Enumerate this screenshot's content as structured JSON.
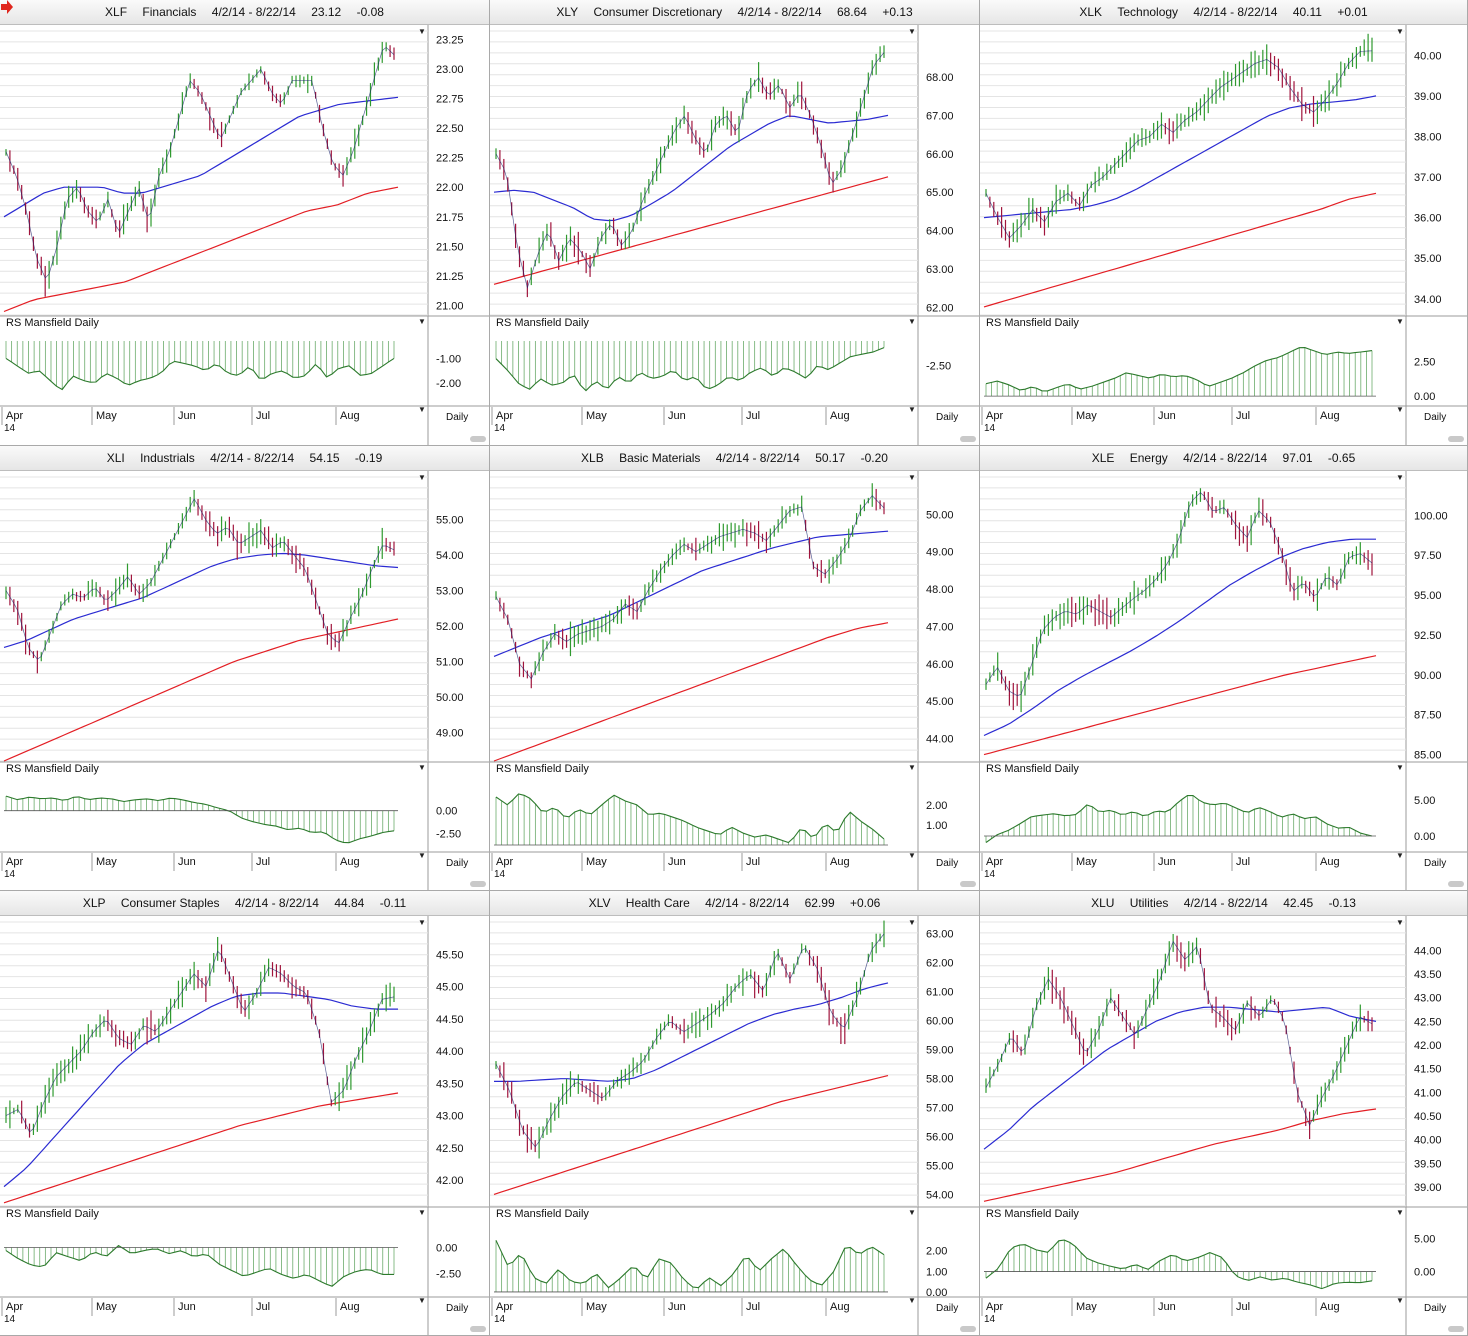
{
  "layout": {
    "cols": 3,
    "rows": 3
  },
  "colors": {
    "price_up": "#2f9a2f",
    "price_down": "#a0143c",
    "ma_short": "#2b2bd2",
    "ma_long": "#e31e24",
    "rs_fill": "#3a8f3a",
    "grid": "#e4e4e4",
    "alert": "#e0261d"
  },
  "common": {
    "rs_label": "RS Mansfield Daily",
    "daily_label": "Daily",
    "months": [
      "Apr",
      "May",
      "Jun",
      "Jul",
      "Aug"
    ],
    "year": "14",
    "alert_icon": "red-arrow-icon"
  },
  "chart_data": [
    {
      "type": "line",
      "symbol": "XLF",
      "name": "Financials",
      "range": "4/2/14 - 8/22/14",
      "last": "23.12",
      "change": "-0.08",
      "price_ticks": [
        "21.00",
        "21.25",
        "21.50",
        "21.75",
        "22.00",
        "22.25",
        "22.50",
        "22.75",
        "23.00",
        "23.25"
      ],
      "ylim": [
        20.92,
        23.32
      ],
      "price": [
        22.3,
        22.1,
        21.8,
        21.4,
        21.2,
        21.5,
        21.9,
        22.0,
        21.8,
        21.7,
        21.9,
        21.6,
        21.8,
        22.0,
        21.7,
        22.1,
        22.3,
        22.6,
        22.9,
        22.8,
        22.6,
        22.4,
        22.6,
        22.8,
        22.9,
        23.0,
        22.8,
        22.7,
        22.9,
        22.9,
        22.9,
        22.5,
        22.2,
        22.1,
        22.3,
        22.6,
        22.9,
        23.2,
        23.12
      ],
      "ma_short": [
        21.75,
        21.85,
        21.95,
        22.0,
        22.0,
        22.0,
        21.95,
        21.95,
        22.0,
        22.05,
        22.1,
        22.2,
        22.3,
        22.4,
        22.5,
        22.6,
        22.65,
        22.7,
        22.72,
        22.74,
        22.76
      ],
      "ma_long": [
        20.95,
        21.05,
        21.1,
        21.15,
        21.2,
        21.3,
        21.4,
        21.5,
        21.6,
        21.7,
        21.8,
        21.85,
        21.95,
        22.0
      ],
      "rs_ticks": [
        "-1.00",
        "-2.00"
      ],
      "rs_lim": [
        -2.8,
        -0.3
      ],
      "rs": [
        -1.0,
        -1.3,
        -1.6,
        -1.5,
        -1.9,
        -2.3,
        -1.7,
        -1.9,
        -2.0,
        -1.6,
        -1.8,
        -2.1,
        -1.9,
        -1.8,
        -1.6,
        -1.1,
        -1.2,
        -1.3,
        -1.5,
        -1.2,
        -1.6,
        -1.7,
        -1.3,
        -1.9,
        -1.6,
        -1.5,
        -1.8,
        -1.7,
        -1.2,
        -1.8,
        -1.4,
        -1.3,
        -1.7,
        -1.6,
        -1.3,
        -1.0
      ]
    },
    {
      "type": "line",
      "symbol": "XLY",
      "name": "Consumer Discretionary",
      "range": "4/2/14 - 8/22/14",
      "last": "68.64",
      "change": "+0.13",
      "price_ticks": [
        "62.00",
        "63.00",
        "64.00",
        "65.00",
        "66.00",
        "67.00",
        "68.00"
      ],
      "ylim": [
        61.8,
        69.2
      ],
      "price": [
        66.0,
        65.5,
        63.6,
        62.5,
        63.4,
        64.0,
        63.2,
        63.8,
        63.5,
        63.0,
        63.8,
        64.2,
        63.6,
        64.0,
        64.8,
        65.4,
        66.0,
        66.6,
        67.0,
        66.4,
        66.0,
        66.8,
        67.0,
        66.5,
        67.6,
        68.0,
        67.5,
        67.8,
        67.2,
        67.6,
        67.0,
        66.2,
        65.2,
        65.6,
        66.5,
        67.4,
        68.3,
        68.64
      ],
      "ma_short": [
        65.0,
        65.05,
        65.0,
        64.8,
        64.6,
        64.3,
        64.25,
        64.4,
        64.7,
        65.0,
        65.4,
        65.8,
        66.2,
        66.5,
        66.8,
        67.0,
        66.9,
        66.8,
        66.85,
        66.9,
        67.0
      ],
      "ma_long": [
        62.6,
        62.8,
        63.0,
        63.2,
        63.4,
        63.6,
        63.8,
        64.0,
        64.2,
        64.4,
        64.6,
        64.8,
        65.0,
        65.2,
        65.4
      ],
      "rs_ticks": [
        "-2.50"
      ],
      "rs_lim": [
        -4.2,
        -1.4
      ],
      "rs": [
        -2.2,
        -2.7,
        -3.3,
        -3.6,
        -3.1,
        -3.4,
        -3.3,
        -2.9,
        -3.7,
        -3.2,
        -3.6,
        -3.0,
        -3.3,
        -2.8,
        -3.1,
        -3.0,
        -2.7,
        -3.2,
        -3.0,
        -3.6,
        -3.4,
        -3.0,
        -3.2,
        -2.8,
        -2.6,
        -3.0,
        -2.6,
        -2.8,
        -3.1,
        -2.5,
        -2.7,
        -2.4,
        -2.1,
        -2.0,
        -1.9,
        -1.7
      ]
    },
    {
      "type": "line",
      "symbol": "XLK",
      "name": "Technology",
      "range": "4/2/14 - 8/22/14",
      "last": "40.11",
      "change": "+0.01",
      "price_ticks": [
        "34.00",
        "35.00",
        "36.00",
        "37.00",
        "38.00",
        "39.00",
        "40.00"
      ],
      "ylim": [
        33.6,
        40.6
      ],
      "price": [
        36.6,
        36.0,
        35.5,
        35.8,
        36.2,
        35.9,
        36.4,
        36.6,
        36.3,
        36.8,
        37.0,
        37.3,
        37.6,
        37.9,
        38.0,
        38.3,
        38.1,
        38.4,
        38.6,
        38.9,
        39.2,
        39.4,
        39.6,
        39.8,
        39.9,
        39.7,
        39.2,
        38.8,
        38.6,
        38.9,
        39.3,
        39.8,
        40.1,
        40.11
      ],
      "ma_short": [
        36.0,
        36.05,
        36.1,
        36.15,
        36.2,
        36.3,
        36.45,
        36.7,
        37.0,
        37.3,
        37.6,
        37.9,
        38.2,
        38.5,
        38.7,
        38.8,
        38.85,
        38.9,
        39.0
      ],
      "ma_long": [
        33.8,
        34.0,
        34.2,
        34.4,
        34.6,
        34.8,
        35.0,
        35.2,
        35.4,
        35.6,
        35.8,
        36.0,
        36.2,
        36.45,
        36.6
      ],
      "rs_ticks": [
        "2.50",
        "0.00"
      ],
      "rs_lim": [
        -0.5,
        4.0
      ],
      "rs": [
        0.9,
        1.1,
        0.8,
        0.4,
        0.7,
        0.3,
        0.6,
        0.9,
        0.5,
        0.7,
        1.0,
        1.3,
        1.7,
        1.5,
        1.3,
        1.6,
        1.4,
        1.5,
        1.2,
        0.7,
        1.0,
        1.3,
        1.7,
        2.2,
        2.6,
        2.8,
        3.2,
        3.6,
        3.3,
        3.0,
        3.2,
        3.1,
        3.2,
        3.3
      ]
    },
    {
      "type": "line",
      "symbol": "XLI",
      "name": "Industrials",
      "range": "4/2/14 - 8/22/14",
      "last": "54.15",
      "change": "-0.19",
      "price_ticks": [
        "49.00",
        "50.00",
        "51.00",
        "52.00",
        "53.00",
        "54.00",
        "55.00"
      ],
      "ylim": [
        48.2,
        56.2
      ],
      "price": [
        53.0,
        52.5,
        51.4,
        51.0,
        51.8,
        52.6,
        52.9,
        52.8,
        53.1,
        52.7,
        53.0,
        53.4,
        52.9,
        53.2,
        53.8,
        54.4,
        55.0,
        55.6,
        55.0,
        54.6,
        54.8,
        54.3,
        54.5,
        54.7,
        54.2,
        54.4,
        54.0,
        53.6,
        52.7,
        51.8,
        51.5,
        52.2,
        52.8,
        53.6,
        54.3,
        54.15
      ],
      "ma_short": [
        51.4,
        51.6,
        51.9,
        52.2,
        52.4,
        52.6,
        52.8,
        53.1,
        53.4,
        53.7,
        53.9,
        54.0,
        54.05,
        54.0,
        53.9,
        53.8,
        53.7,
        53.65
      ],
      "ma_long": [
        48.2,
        48.6,
        49.0,
        49.4,
        49.8,
        50.2,
        50.6,
        51.0,
        51.3,
        51.6,
        51.8,
        52.0,
        52.2
      ],
      "rs_ticks": [
        "0.00",
        "-2.50"
      ],
      "rs_lim": [
        -4.2,
        2.6
      ],
      "rs": [
        1.6,
        1.2,
        1.5,
        1.3,
        1.4,
        1.1,
        1.6,
        1.2,
        1.4,
        1.3,
        1.0,
        1.2,
        1.3,
        1.1,
        1.4,
        1.2,
        0.9,
        0.7,
        0.3,
        0.0,
        -0.8,
        -1.2,
        -1.5,
        -1.7,
        -2.1,
        -1.9,
        -2.4,
        -2.3,
        -3.2,
        -3.6,
        -3.1,
        -2.8,
        -2.4,
        -2.2
      ]
    },
    {
      "type": "line",
      "symbol": "XLB",
      "name": "Basic Materials",
      "range": "4/2/14 - 8/22/14",
      "last": "50.17",
      "change": "-0.20",
      "price_ticks": [
        "44.00",
        "45.00",
        "46.00",
        "47.00",
        "48.00",
        "49.00",
        "50.00"
      ],
      "ylim": [
        43.4,
        51.0
      ],
      "price": [
        47.8,
        47.2,
        46.0,
        45.6,
        46.3,
        46.8,
        46.6,
        46.8,
        46.9,
        47.0,
        47.2,
        47.6,
        47.4,
        48.0,
        48.5,
        48.9,
        49.2,
        49.0,
        49.2,
        49.4,
        49.5,
        49.6,
        49.5,
        49.3,
        49.7,
        50.1,
        50.2,
        48.6,
        48.4,
        48.8,
        49.3,
        50.1,
        50.5,
        50.17
      ],
      "ma_short": [
        46.2,
        46.45,
        46.7,
        46.9,
        47.1,
        47.3,
        47.6,
        47.9,
        48.2,
        48.5,
        48.7,
        48.9,
        49.1,
        49.25,
        49.4,
        49.45,
        49.5,
        49.55
      ],
      "ma_long": [
        43.4,
        43.7,
        44.0,
        44.3,
        44.6,
        44.9,
        45.2,
        45.5,
        45.8,
        46.1,
        46.4,
        46.7,
        46.95,
        47.1
      ],
      "rs_ticks": [
        "2.00",
        "1.00"
      ],
      "rs_lim": [
        -0.2,
        2.9
      ],
      "rs": [
        2.4,
        2.0,
        2.6,
        2.3,
        1.6,
        1.9,
        1.3,
        1.8,
        1.5,
        2.0,
        2.5,
        2.2,
        2.0,
        1.5,
        1.6,
        1.4,
        1.2,
        0.9,
        0.7,
        0.5,
        0.9,
        0.6,
        0.4,
        0.5,
        0.3,
        0.1,
        0.9,
        0.3,
        1.1,
        0.6,
        1.7,
        1.2,
        0.8,
        0.3
      ]
    },
    {
      "type": "line",
      "symbol": "XLE",
      "name": "Energy",
      "range": "4/2/14 - 8/22/14",
      "last": "97.01",
      "change": "-0.65",
      "price_ticks": [
        "85.00",
        "87.50",
        "90.00",
        "92.50",
        "95.00",
        "97.50",
        "100.00"
      ],
      "ylim": [
        84.6,
        102.4
      ],
      "price": [
        89.4,
        90.5,
        89.0,
        88.6,
        90.6,
        92.8,
        93.6,
        94.0,
        93.8,
        94.4,
        94.0,
        93.6,
        94.2,
        94.8,
        95.3,
        96.0,
        97.0,
        98.5,
        100.8,
        101.5,
        100.2,
        100.5,
        99.4,
        98.6,
        100.3,
        99.6,
        97.8,
        95.2,
        95.8,
        94.8,
        96.2,
        95.6,
        97.4,
        97.6,
        97.01
      ],
      "ma_short": [
        86.2,
        86.9,
        87.9,
        89.0,
        89.9,
        90.7,
        91.5,
        92.4,
        93.4,
        94.5,
        95.6,
        96.5,
        97.3,
        97.9,
        98.3,
        98.5,
        98.5
      ],
      "ma_long": [
        85.0,
        85.5,
        86.0,
        86.5,
        87.0,
        87.5,
        88.0,
        88.5,
        89.0,
        89.5,
        90.0,
        90.4,
        90.8,
        91.2
      ],
      "rs_ticks": [
        "5.00",
        "0.00"
      ],
      "rs_lim": [
        -1.8,
        6.8
      ],
      "rs": [
        -0.9,
        0.2,
        0.8,
        1.7,
        2.7,
        2.9,
        3.1,
        2.8,
        3.0,
        4.5,
        3.3,
        3.6,
        2.9,
        3.4,
        2.7,
        3.5,
        3.3,
        4.8,
        5.9,
        4.7,
        4.3,
        4.6,
        3.9,
        3.2,
        4.0,
        3.4,
        2.6,
        3.1,
        2.4,
        2.7,
        1.7,
        1.1,
        1.2,
        0.4,
        0.0
      ]
    },
    {
      "type": "line",
      "symbol": "XLP",
      "name": "Consumer Staples",
      "range": "4/2/14 - 8/22/14",
      "last": "44.84",
      "change": "-0.11",
      "price_ticks": [
        "42.00",
        "42.50",
        "43.00",
        "43.50",
        "44.00",
        "44.50",
        "45.00",
        "45.50"
      ],
      "ylim": [
        41.6,
        46.0
      ],
      "price": [
        43.0,
        43.1,
        42.7,
        43.2,
        43.6,
        43.8,
        44.0,
        44.3,
        44.5,
        44.2,
        44.1,
        44.4,
        44.3,
        44.6,
        44.9,
        45.2,
        45.0,
        45.6,
        45.1,
        44.6,
        44.9,
        45.3,
        45.2,
        45.0,
        44.9,
        44.3,
        43.2,
        43.4,
        43.9,
        44.3,
        44.8,
        44.84
      ],
      "ma_short": [
        41.9,
        42.2,
        42.6,
        43.0,
        43.4,
        43.8,
        44.1,
        44.3,
        44.5,
        44.7,
        44.85,
        44.9,
        44.9,
        44.85,
        44.8,
        44.7,
        44.65,
        44.65
      ],
      "ma_long": [
        41.65,
        41.85,
        42.05,
        42.25,
        42.45,
        42.65,
        42.85,
        43.0,
        43.15,
        43.25,
        43.35
      ],
      "rs_ticks": [
        "0.00",
        "-2.50"
      ],
      "rs_lim": [
        -4.5,
        1.5
      ],
      "rs": [
        -0.3,
        -1.1,
        -1.7,
        -1.9,
        -0.5,
        -0.9,
        -1.3,
        -0.4,
        -0.9,
        0.2,
        -0.6,
        -0.3,
        -0.1,
        -0.6,
        -0.3,
        -0.9,
        -0.6,
        -1.6,
        -2.2,
        -2.8,
        -2.4,
        -2.0,
        -2.6,
        -3.0,
        -2.6,
        -3.2,
        -3.8,
        -2.8,
        -2.3,
        -2.1,
        -2.6,
        -2.6
      ]
    },
    {
      "type": "line",
      "symbol": "XLV",
      "name": "Health Care",
      "range": "4/2/14 - 8/22/14",
      "last": "62.99",
      "change": "+0.06",
      "price_ticks": [
        "54.00",
        "55.00",
        "56.00",
        "57.00",
        "58.00",
        "59.00",
        "60.00",
        "61.00",
        "62.00",
        "63.00"
      ],
      "ylim": [
        53.6,
        63.4
      ],
      "price": [
        58.5,
        57.6,
        56.2,
        55.6,
        56.6,
        57.4,
        57.9,
        57.6,
        57.3,
        57.9,
        58.2,
        58.6,
        59.4,
        60.0,
        59.6,
        59.9,
        60.2,
        60.6,
        61.2,
        61.6,
        61.0,
        62.4,
        61.4,
        62.6,
        61.8,
        60.3,
        59.7,
        60.8,
        62.4,
        62.99
      ],
      "ma_short": [
        57.9,
        57.9,
        57.95,
        58.0,
        57.95,
        57.9,
        58.0,
        58.3,
        58.7,
        59.1,
        59.5,
        59.9,
        60.2,
        60.4,
        60.55,
        60.8,
        61.1,
        61.3
      ],
      "ma_long": [
        54.0,
        54.4,
        54.8,
        55.2,
        55.6,
        56.0,
        56.4,
        56.8,
        57.2,
        57.5,
        57.8,
        58.1
      ],
      "rs_ticks": [
        "2.00",
        "1.00",
        "0.00"
      ],
      "rs_lim": [
        -0.1,
        2.9
      ],
      "rs": [
        2.5,
        1.2,
        1.9,
        0.7,
        0.4,
        1.1,
        0.5,
        0.4,
        0.9,
        0.2,
        0.7,
        1.3,
        0.6,
        1.6,
        1.4,
        0.6,
        0.1,
        0.7,
        0.3,
        0.9,
        1.8,
        1.0,
        1.6,
        2.1,
        1.3,
        0.6,
        0.3,
        1.0,
        2.3,
        1.8,
        2.2,
        1.8
      ]
    },
    {
      "type": "line",
      "symbol": "XLU",
      "name": "Utilities",
      "range": "4/2/14 - 8/22/14",
      "last": "42.45",
      "change": "-0.13",
      "price_ticks": [
        "39.00",
        "39.50",
        "40.00",
        "40.50",
        "41.00",
        "41.50",
        "42.00",
        "42.50",
        "43.00",
        "43.50",
        "44.00"
      ],
      "ylim": [
        38.6,
        44.6
      ],
      "price": [
        41.1,
        41.6,
        42.2,
        41.8,
        42.8,
        43.4,
        43.0,
        42.4,
        41.8,
        42.3,
        43.0,
        42.6,
        42.2,
        42.8,
        43.4,
        44.2,
        43.8,
        44.1,
        42.8,
        42.6,
        42.3,
        42.9,
        42.6,
        43.0,
        42.5,
        41.0,
        40.3,
        40.9,
        41.4,
        42.0,
        42.6,
        42.45
      ],
      "ma_short": [
        39.8,
        40.2,
        40.7,
        41.1,
        41.5,
        41.9,
        42.2,
        42.5,
        42.7,
        42.8,
        42.8,
        42.75,
        42.7,
        42.75,
        42.8,
        42.6,
        42.5
      ],
      "ma_long": [
        38.7,
        38.85,
        39.0,
        39.15,
        39.3,
        39.5,
        39.7,
        39.9,
        40.05,
        40.2,
        40.4,
        40.55,
        40.65
      ],
      "rs_ticks": [
        "5.00",
        "0.00"
      ],
      "rs_lim": [
        -3.4,
        6.0
      ],
      "rs": [
        -1.0,
        0.5,
        3.6,
        4.2,
        3.3,
        2.9,
        5.0,
        4.2,
        2.1,
        1.3,
        0.8,
        0.4,
        1.1,
        0.3,
        1.7,
        2.6,
        1.6,
        2.1,
        2.9,
        2.1,
        -0.6,
        -1.4,
        -0.8,
        -1.3,
        -1.0,
        -1.6,
        -2.0,
        -2.6,
        -1.8,
        -1.6,
        -1.7,
        -1.4
      ]
    }
  ]
}
